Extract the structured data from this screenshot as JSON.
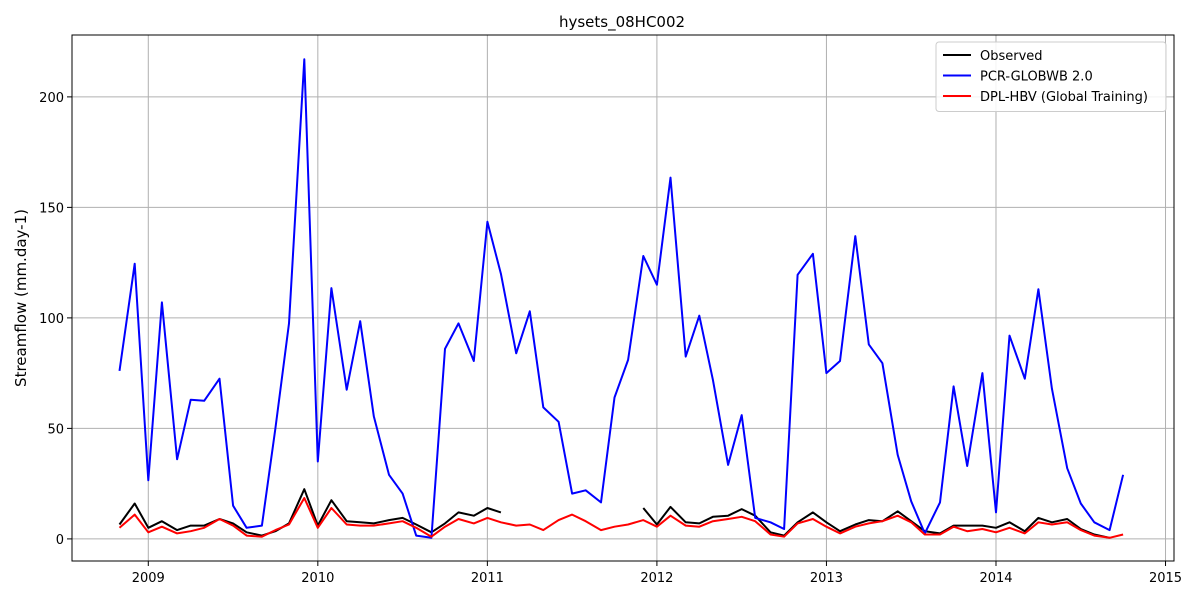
{
  "chart_data": {
    "type": "line",
    "title": "hysets_08HC002",
    "xlabel": "",
    "ylabel": "Streamflow (mm.day-1)",
    "xlim": [
      2008.55,
      2015.05
    ],
    "ylim": [
      -10,
      228
    ],
    "x_ticks": [
      2009,
      2010,
      2011,
      2012,
      2013,
      2014,
      2015
    ],
    "x_tick_labels": [
      "2009",
      "2010",
      "2011",
      "2012",
      "2013",
      "2014",
      "2015"
    ],
    "y_ticks": [
      0,
      50,
      100,
      150,
      200
    ],
    "y_tick_labels": [
      "0",
      "50",
      "100",
      "150",
      "200"
    ],
    "grid": true,
    "legend_position": "top-right",
    "series": [
      {
        "name": "Observed",
        "color": "#000000",
        "x": [
          2008.83,
          2008.92,
          2009.0,
          2009.08,
          2009.17,
          2009.25,
          2009.33,
          2009.42,
          2009.5,
          2009.58,
          2009.67,
          2009.75,
          2009.83,
          2009.92,
          2010.0,
          2010.08,
          2010.17,
          2010.25,
          2010.33,
          2010.42,
          2010.5,
          2010.58,
          2010.67,
          2010.75,
          2010.83,
          2010.92,
          2011.0,
          2011.08
        ],
        "values": [
          6.5,
          16,
          5,
          8,
          4,
          6,
          6,
          9,
          7,
          3,
          1.5,
          3.5,
          7,
          22.5,
          6,
          17.5,
          8,
          7.5,
          7,
          8.5,
          9.5,
          6.5,
          3,
          7,
          12,
          10.5,
          14,
          12
        ]
      },
      {
        "name": "Observed",
        "color": "#000000",
        "x": [
          2011.92,
          2012.0,
          2012.08,
          2012.17,
          2012.25,
          2012.33,
          2012.42,
          2012.5,
          2012.58,
          2012.67,
          2012.75,
          2012.83,
          2012.92,
          2013.0,
          2013.08,
          2013.17,
          2013.25,
          2013.33,
          2013.42,
          2013.5,
          2013.58,
          2013.67,
          2013.75,
          2013.83,
          2013.92,
          2014.0,
          2014.08,
          2014.17,
          2014.25,
          2014.33,
          2014.42,
          2014.5,
          2014.58,
          2014.67
        ],
        "values": [
          14,
          6.5,
          14.5,
          7.5,
          7,
          10,
          10.5,
          13.5,
          10.5,
          3,
          1.5,
          7.5,
          12,
          7.5,
          3.5,
          6.5,
          8.5,
          8,
          12.5,
          8,
          3.5,
          2.5,
          6,
          6,
          6,
          5,
          7.5,
          3.5,
          9.5,
          7.5,
          9,
          4.5,
          2,
          0.5
        ]
      },
      {
        "name": "PCR-GLOBWB 2.0",
        "color": "#0000ff",
        "x": [
          2008.83,
          2008.92,
          2009.0,
          2009.08,
          2009.17,
          2009.25,
          2009.33,
          2009.42,
          2009.5,
          2009.58,
          2009.67,
          2009.75,
          2009.83,
          2009.92,
          2010.0,
          2010.08,
          2010.17,
          2010.25,
          2010.33,
          2010.42,
          2010.5,
          2010.58,
          2010.67,
          2010.75,
          2010.83,
          2010.92,
          2011.0,
          2011.08,
          2011.17,
          2011.25,
          2011.33,
          2011.42,
          2011.5,
          2011.58,
          2011.67,
          2011.75,
          2011.83,
          2011.92,
          2012.0,
          2012.08,
          2012.17,
          2012.25,
          2012.33,
          2012.42,
          2012.5,
          2012.58,
          2012.67,
          2012.75,
          2012.83,
          2012.92,
          2013.0,
          2013.08,
          2013.17,
          2013.25,
          2013.33,
          2013.42,
          2013.5,
          2013.58,
          2013.67,
          2013.75,
          2013.83,
          2013.92,
          2014.0,
          2014.08,
          2014.17,
          2014.25,
          2014.33,
          2014.42,
          2014.5,
          2014.58,
          2014.67,
          2014.75
        ],
        "values": [
          76,
          124.5,
          26.5,
          107,
          36,
          63,
          62.5,
          72.5,
          15,
          5,
          6,
          50,
          97.5,
          217,
          35,
          113.5,
          67.5,
          98.5,
          55.5,
          29,
          20.5,
          1.5,
          0.5,
          86,
          97.5,
          80.5,
          143.5,
          120,
          84,
          103,
          59.5,
          53,
          20.5,
          22,
          16.5,
          64,
          81,
          128,
          115,
          163.5,
          82.5,
          101,
          72,
          33.5,
          56,
          9.5,
          7.5,
          4.5,
          119.5,
          129,
          75,
          80.5,
          137,
          88,
          79.5,
          38,
          17,
          2.5,
          16.5,
          69,
          33,
          75,
          12,
          92,
          72.5,
          113,
          68,
          32,
          16,
          7.5,
          4,
          29
        ]
      },
      {
        "name": "DPL-HBV (Global Training)",
        "color": "#ff0000",
        "x": [
          2008.83,
          2008.92,
          2009.0,
          2009.08,
          2009.17,
          2009.25,
          2009.33,
          2009.42,
          2009.5,
          2009.58,
          2009.67,
          2009.75,
          2009.83,
          2009.92,
          2010.0,
          2010.08,
          2010.17,
          2010.25,
          2010.33,
          2010.42,
          2010.5,
          2010.58,
          2010.67,
          2010.75,
          2010.83,
          2010.92,
          2011.0,
          2011.08,
          2011.17,
          2011.25,
          2011.33,
          2011.42,
          2011.5,
          2011.58,
          2011.67,
          2011.75,
          2011.83,
          2011.92,
          2012.0,
          2012.08,
          2012.17,
          2012.25,
          2012.33,
          2012.42,
          2012.5,
          2012.58,
          2012.67,
          2012.75,
          2012.83,
          2012.92,
          2013.0,
          2013.08,
          2013.17,
          2013.25,
          2013.33,
          2013.42,
          2013.5,
          2013.58,
          2013.67,
          2013.75,
          2013.83,
          2013.92,
          2014.0,
          2014.08,
          2014.17,
          2014.25,
          2014.33,
          2014.42,
          2014.5,
          2014.58,
          2014.67,
          2014.75
        ],
        "values": [
          5,
          11,
          3,
          5.5,
          2.5,
          3.5,
          5,
          9,
          6,
          1.5,
          1,
          4,
          6.5,
          18.5,
          5,
          14,
          6.5,
          6,
          6,
          7,
          8,
          5,
          1,
          5.5,
          9,
          7,
          9.5,
          7.5,
          6,
          6.5,
          4,
          8.5,
          11,
          8,
          4,
          5.5,
          6.5,
          8.5,
          5.5,
          10.5,
          6,
          5.5,
          8,
          9,
          10,
          8,
          2,
          1,
          7,
          9,
          5.5,
          2.5,
          5.5,
          7,
          8,
          10.5,
          7.5,
          2,
          2,
          5.5,
          3.5,
          4.5,
          3,
          5,
          2.5,
          7.5,
          6.5,
          7.5,
          4,
          1.5,
          0.5,
          2
        ]
      }
    ]
  }
}
